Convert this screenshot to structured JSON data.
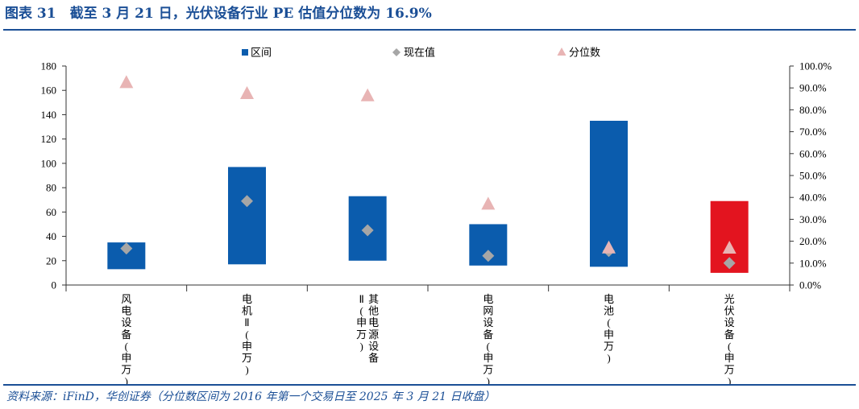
{
  "figure": {
    "title": "图表 31　截至 3 月 21 日，光伏设备行业 PE 估值分位数为 16.9%",
    "source": "资料来源：iFinD，华创证券（分位数区间为 2016 年第一个交易日至 2025 年 3 月 21 日收盘）"
  },
  "chart_data": {
    "type": "bar",
    "categories": [
      "风电设备(申万)",
      "电机Ⅱ(申万)",
      "其他电源设备Ⅱ(申万)",
      "电网设备(申万)",
      "电池(申万)",
      "光伏设备(申万)"
    ],
    "category_label_columns": [
      [
        "风电设备(申万)"
      ],
      [
        "电机Ⅱ(申万)"
      ],
      [
        "其他电源设备",
        "Ⅱ(申万)"
      ],
      [
        "电网设备(申万)"
      ],
      [
        "电池(申万)"
      ],
      [
        "光伏设备(申万)"
      ]
    ],
    "series": [
      {
        "name": "区间",
        "kind": "floating-bar",
        "axis": "left",
        "color": "#0b5cad",
        "ranges": [
          [
            13,
            35
          ],
          [
            17,
            97
          ],
          [
            20,
            73
          ],
          [
            16,
            50
          ],
          [
            15,
            135
          ],
          [
            10,
            69
          ]
        ],
        "highlight_index": 5,
        "highlight_color": "#e3141f"
      },
      {
        "name": "现在值",
        "kind": "diamond",
        "axis": "left",
        "color": "#a6a6a6",
        "values": [
          30,
          69,
          45,
          24,
          28,
          18
        ]
      },
      {
        "name": "分位数",
        "kind": "triangle",
        "axis": "right",
        "color": "#e8b4b4",
        "values": [
          92.5,
          87.5,
          86.5,
          37.0,
          17.0,
          16.9
        ]
      }
    ],
    "left_axis": {
      "min": 0,
      "max": 180,
      "ticks": [
        "0",
        "20",
        "40",
        "60",
        "80",
        "100",
        "120",
        "140",
        "160",
        "180"
      ]
    },
    "right_axis": {
      "min": 0,
      "max": 100,
      "ticks": [
        "0.0%",
        "10.0%",
        "20.0%",
        "30.0%",
        "40.0%",
        "50.0%",
        "60.0%",
        "70.0%",
        "80.0%",
        "90.0%",
        "100.0%"
      ]
    },
    "legend_position": "top",
    "grid": false
  }
}
